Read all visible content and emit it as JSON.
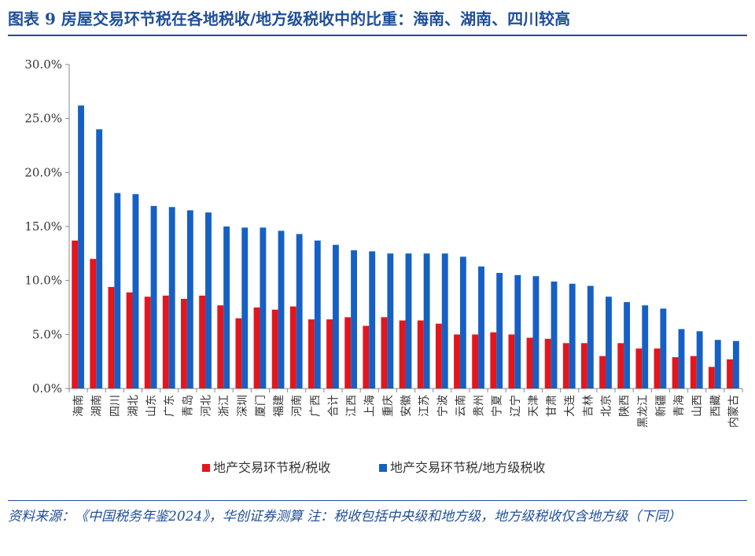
{
  "header": {
    "title": "图表 9   房屋交易环节税在各地税收/地方级税收中的比重：海南、湖南、四川较高"
  },
  "footer": {
    "source": "资料来源：《中国税务年鉴2024》，华创证券测算  注：税收包括中央级和地方级，地方级税收仅含地方级（下同）"
  },
  "colors": {
    "red": "#e3161e",
    "blue": "#1660c4",
    "axis": "#888888",
    "text": "#333333"
  },
  "chart_data": {
    "type": "bar",
    "ylim": [
      0,
      30
    ],
    "yticks": [
      "0.0%",
      "5.0%",
      "10.0%",
      "15.0%",
      "20.0%",
      "25.0%",
      "30.0%"
    ],
    "ytick_values": [
      0,
      5,
      10,
      15,
      20,
      25,
      30
    ],
    "grid": false,
    "legend_position": "bottom",
    "categories": [
      "海南",
      "湖南",
      "四川",
      "湖北",
      "山东",
      "广东",
      "青岛",
      "河北",
      "浙江",
      "深圳",
      "厦门",
      "福建",
      "河南",
      "广西",
      "合计",
      "江西",
      "上海",
      "重庆",
      "安徽",
      "江苏",
      "宁波",
      "云南",
      "贵州",
      "宁夏",
      "辽宁",
      "天津",
      "甘肃",
      "大连",
      "吉林",
      "北京",
      "陕西",
      "黑龙江",
      "新疆",
      "青海",
      "山西",
      "西藏",
      "内蒙古"
    ],
    "series": [
      {
        "name": "地产交易环节税/税收",
        "color": "#e3161e",
        "values": [
          13.7,
          12.0,
          9.4,
          8.9,
          8.5,
          8.6,
          8.3,
          8.6,
          7.7,
          6.5,
          7.5,
          7.3,
          7.6,
          6.4,
          6.4,
          6.6,
          5.8,
          6.6,
          6.3,
          6.3,
          6.0,
          5.0,
          5.0,
          5.2,
          5.0,
          4.7,
          4.6,
          4.2,
          4.2,
          3.0,
          4.2,
          3.7,
          3.7,
          2.9,
          3.0,
          2.0,
          2.7
        ]
      },
      {
        "name": "地产交易环节税/地方级税收",
        "color": "#1660c4",
        "values": [
          26.2,
          24.0,
          18.1,
          18.0,
          16.9,
          16.8,
          16.5,
          16.3,
          15.0,
          14.9,
          14.9,
          14.6,
          14.3,
          13.7,
          13.3,
          12.8,
          12.7,
          12.5,
          12.5,
          12.5,
          12.5,
          12.2,
          11.3,
          10.7,
          10.5,
          10.4,
          9.9,
          9.7,
          9.5,
          8.5,
          8.0,
          7.7,
          7.4,
          5.5,
          5.3,
          4.5,
          4.4
        ]
      }
    ]
  }
}
